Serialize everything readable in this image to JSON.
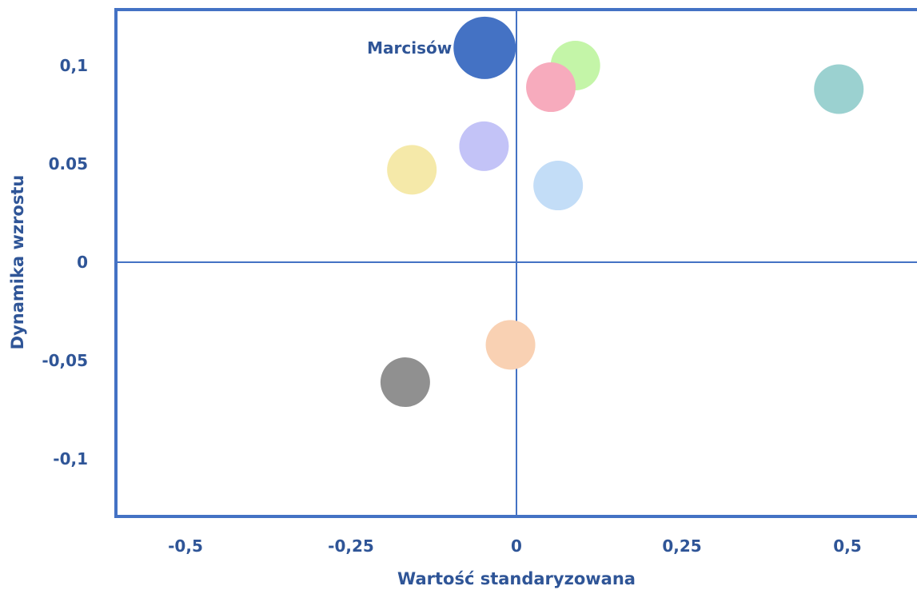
{
  "chart_data": {
    "type": "scatter",
    "xlabel": "Wartość standaryzowana",
    "ylabel": "Dynamika wzrostu",
    "xlim": [
      -0.58,
      0.58
    ],
    "ylim": [
      -0.13,
      0.128
    ],
    "xticks": [
      {
        "value": -0.5,
        "label": "-0,5"
      },
      {
        "value": -0.25,
        "label": "-0,25"
      },
      {
        "value": 0,
        "label": "0"
      },
      {
        "value": 0.25,
        "label": "0,25"
      },
      {
        "value": 0.5,
        "label": "0,5"
      }
    ],
    "yticks": [
      {
        "value": 0.1,
        "label": "0,1"
      },
      {
        "value": 0.05,
        "label": "0.05"
      },
      {
        "value": 0,
        "label": "0"
      },
      {
        "value": -0.05,
        "label": "-0,05"
      },
      {
        "value": -0.1,
        "label": "-0,1"
      }
    ],
    "points": [
      {
        "x": -0.048,
        "y": 0.109,
        "r": 39,
        "color": "#4472c4",
        "label": "Marcisów"
      },
      {
        "x": 0.089,
        "y": 0.1,
        "r": 31,
        "color": "#c4f5a8",
        "label": ""
      },
      {
        "x": 0.052,
        "y": 0.089,
        "r": 31,
        "color": "#f7abbd",
        "label": ""
      },
      {
        "x": 0.487,
        "y": 0.088,
        "r": 31,
        "color": "#9bd1d0",
        "label": ""
      },
      {
        "x": -0.049,
        "y": 0.059,
        "r": 31,
        "color": "#c3c3f7",
        "label": ""
      },
      {
        "x": -0.158,
        "y": 0.047,
        "r": 31,
        "color": "#f5e9a9",
        "label": ""
      },
      {
        "x": 0.063,
        "y": 0.039,
        "r": 31,
        "color": "#c3ddf7",
        "label": ""
      },
      {
        "x": -0.009,
        "y": -0.042,
        "r": 31,
        "color": "#f9d1b3",
        "label": ""
      },
      {
        "x": -0.168,
        "y": -0.061,
        "r": 31,
        "color": "#909090",
        "label": ""
      }
    ],
    "grid": false,
    "legend": "none",
    "colors": {
      "axis": "#4472c4",
      "text": "#2f5597",
      "label": "#2f5597"
    }
  }
}
